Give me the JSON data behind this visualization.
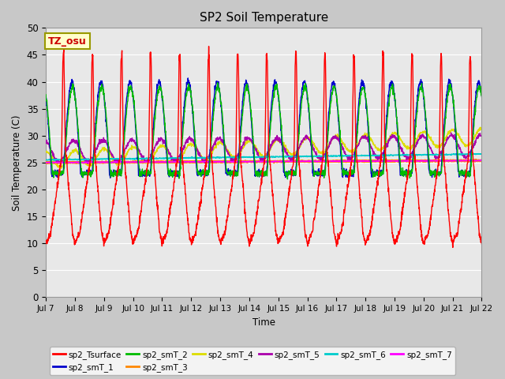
{
  "title": "SP2 Soil Temperature",
  "ylabel": "Soil Temperature (C)",
  "xlabel": "Time",
  "ylim": [
    0,
    50
  ],
  "xlim": [
    0,
    360
  ],
  "tz_label": "TZ_osu",
  "plot_bg_color": "#e8e8e8",
  "fig_bg_color": "#c8c8c8",
  "grid_color": "#ffffff",
  "series_colors": {
    "sp2_Tsurface": "#ff0000",
    "sp2_smT_1": "#0000cc",
    "sp2_smT_2": "#00bb00",
    "sp2_smT_3": "#ff8800",
    "sp2_smT_4": "#dddd00",
    "sp2_smT_5": "#aa00aa",
    "sp2_smT_6": "#00cccc",
    "sp2_smT_7": "#ff00ff"
  },
  "x_tick_labels": [
    "Jul 7",
    "Jul 8",
    "Jul 9",
    "Jul 10",
    "Jul 11",
    "Jul 12",
    "Jul 13",
    "Jul 14",
    "Jul 15",
    "Jul 16",
    "Jul 17",
    "Jul 18",
    "Jul 19",
    "Jul 20",
    "Jul 21",
    "Jul 22"
  ],
  "x_tick_positions": [
    0,
    24,
    48,
    72,
    96,
    120,
    144,
    168,
    192,
    216,
    240,
    264,
    288,
    312,
    336,
    360
  ],
  "y_tick_labels": [
    "0",
    "5",
    "10",
    "15",
    "20",
    "25",
    "30",
    "35",
    "40",
    "45",
    "50"
  ],
  "y_tick_positions": [
    0,
    5,
    10,
    15,
    20,
    25,
    30,
    35,
    40,
    45,
    50
  ]
}
